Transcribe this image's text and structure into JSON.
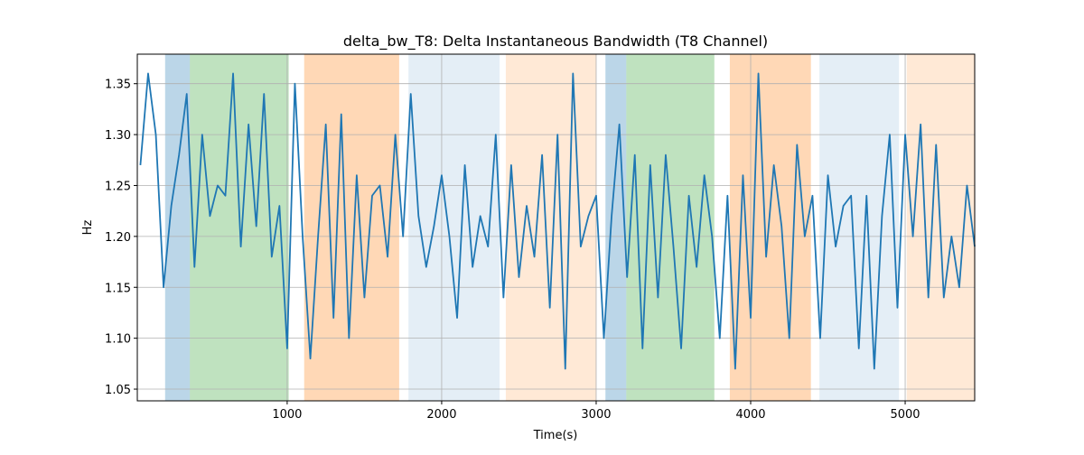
{
  "chart_data": {
    "type": "line",
    "title": "delta_bw_T8: Delta Instantaneous Bandwidth (T8 Channel)",
    "xlabel": "Time(s)",
    "ylabel": "Hz",
    "x": [
      50,
      100,
      150,
      200,
      250,
      300,
      350,
      400,
      450,
      500,
      550,
      600,
      650,
      700,
      750,
      800,
      850,
      900,
      950,
      1000,
      1050,
      1100,
      1150,
      1200,
      1250,
      1300,
      1350,
      1400,
      1450,
      1500,
      1550,
      1600,
      1650,
      1700,
      1750,
      1800,
      1850,
      1900,
      1950,
      2000,
      2050,
      2100,
      2150,
      2200,
      2250,
      2300,
      2350,
      2400,
      2450,
      2500,
      2550,
      2600,
      2650,
      2700,
      2750,
      2800,
      2850,
      2900,
      2950,
      3000,
      3050,
      3100,
      3150,
      3200,
      3250,
      3300,
      3350,
      3400,
      3450,
      3500,
      3550,
      3600,
      3650,
      3700,
      3750,
      3800,
      3850,
      3900,
      3950,
      4000,
      4050,
      4100,
      4150,
      4200,
      4250,
      4300,
      4350,
      4400,
      4450,
      4500,
      4550,
      4600,
      4650,
      4700,
      4750,
      4800,
      4850,
      4900,
      4950,
      5000,
      5050,
      5100,
      5150,
      5200,
      5250,
      5300,
      5350,
      5400,
      5450
    ],
    "series": [
      {
        "name": "delta_bw_T8",
        "color": "#1f77b4",
        "values": [
          1.27,
          1.36,
          1.3,
          1.15,
          1.23,
          1.28,
          1.34,
          1.17,
          1.3,
          1.22,
          1.25,
          1.24,
          1.36,
          1.19,
          1.31,
          1.21,
          1.34,
          1.18,
          1.23,
          1.09,
          1.35,
          1.2,
          1.08,
          1.2,
          1.31,
          1.12,
          1.32,
          1.1,
          1.26,
          1.14,
          1.24,
          1.25,
          1.18,
          1.3,
          1.2,
          1.34,
          1.22,
          1.17,
          1.21,
          1.26,
          1.2,
          1.12,
          1.27,
          1.17,
          1.22,
          1.19,
          1.3,
          1.14,
          1.27,
          1.16,
          1.23,
          1.18,
          1.28,
          1.13,
          1.3,
          1.07,
          1.36,
          1.19,
          1.22,
          1.24,
          1.1,
          1.22,
          1.31,
          1.16,
          1.28,
          1.09,
          1.27,
          1.14,
          1.28,
          1.19,
          1.09,
          1.24,
          1.17,
          1.26,
          1.2,
          1.1,
          1.24,
          1.07,
          1.26,
          1.12,
          1.36,
          1.18,
          1.27,
          1.21,
          1.1,
          1.29,
          1.2,
          1.24,
          1.1,
          1.26,
          1.19,
          1.23,
          1.24,
          1.09,
          1.24,
          1.07,
          1.22,
          1.3,
          1.13,
          1.3,
          1.2,
          1.31,
          1.14,
          1.29,
          1.14,
          1.2,
          1.15,
          1.25,
          1.19
        ]
      }
    ],
    "shaded_regions": [
      {
        "xmin": 210,
        "xmax": 370,
        "color": "#1f77b4",
        "opacity": 0.3
      },
      {
        "xmin": 370,
        "xmax": 1010,
        "color": "#2ca02c",
        "opacity": 0.3
      },
      {
        "xmin": 1110,
        "xmax": 1725,
        "color": "#ff7f0e",
        "opacity": 0.3
      },
      {
        "xmin": 1785,
        "xmax": 2375,
        "color": "#1f77b4",
        "opacity": 0.12
      },
      {
        "xmin": 2415,
        "xmax": 3000,
        "color": "#ff7f0e",
        "opacity": 0.17
      },
      {
        "xmin": 3060,
        "xmax": 3195,
        "color": "#1f77b4",
        "opacity": 0.3
      },
      {
        "xmin": 3195,
        "xmax": 3765,
        "color": "#2ca02c",
        "opacity": 0.3
      },
      {
        "xmin": 3865,
        "xmax": 4390,
        "color": "#ff7f0e",
        "opacity": 0.3
      },
      {
        "xmin": 4445,
        "xmax": 4960,
        "color": "#1f77b4",
        "opacity": 0.12
      },
      {
        "xmin": 5010,
        "xmax": 5450,
        "color": "#ff7f0e",
        "opacity": 0.17
      }
    ],
    "xlim": [
      30,
      5450
    ],
    "ylim": [
      1.0385,
      1.379
    ],
    "xticks": [
      1000,
      2000,
      3000,
      4000,
      5000
    ],
    "yticks": [
      1.05,
      {
        "value": 1.1,
        "label": "1.10"
      },
      1.15,
      {
        "value": 1.2,
        "label": "1.20"
      },
      1.25,
      {
        "value": 1.3,
        "label": "1.30"
      },
      1.35
    ],
    "grid": true
  }
}
